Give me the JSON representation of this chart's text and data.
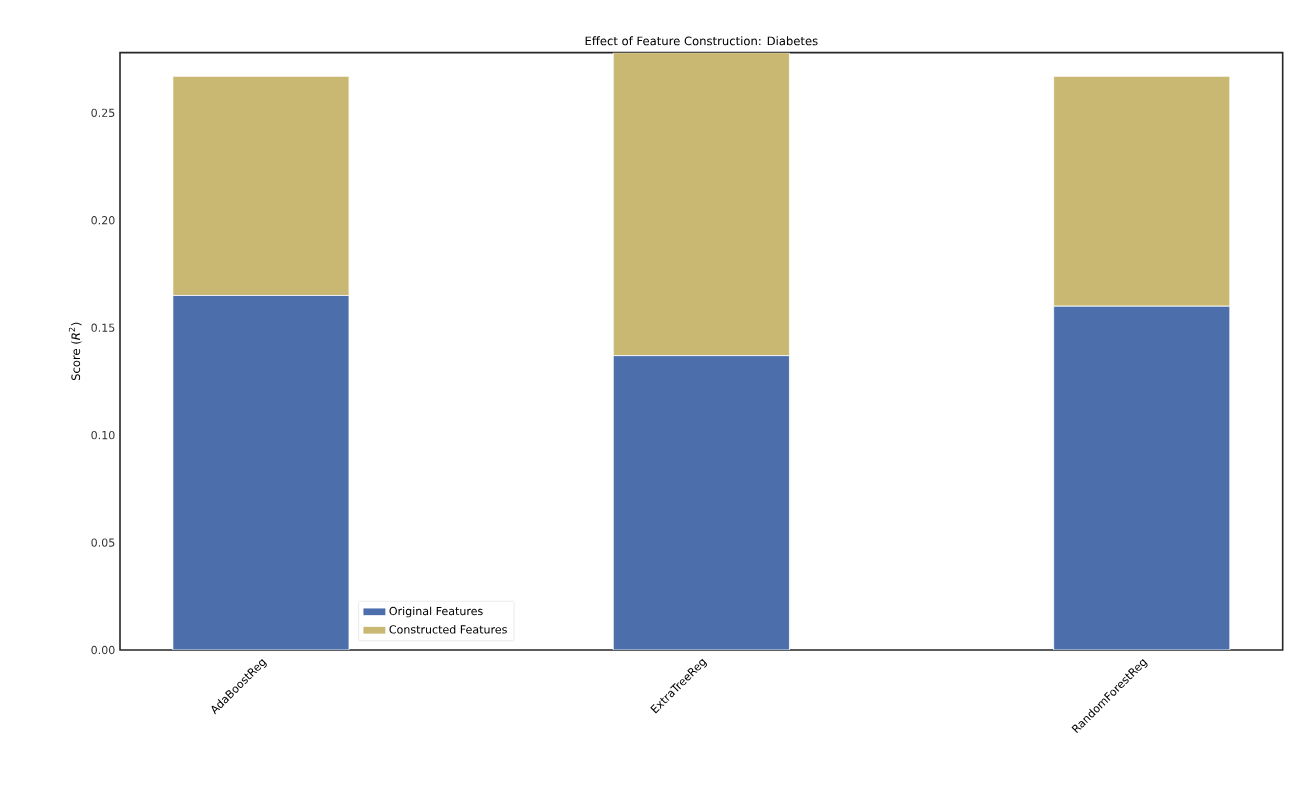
{
  "chart_data": {
    "type": "bar",
    "title": "Effect of Feature Construction: Diabetes",
    "ylabel": "Score (*R*$^{2}$)",
    "categories": [
      "AdaBoostReg",
      "ExtraTreeReg",
      "RandomForestReg"
    ],
    "stacked": true,
    "series": [
      {
        "name": "Original Features",
        "color": "#4c6fac",
        "values": [
          0.165,
          0.137,
          0.16
        ]
      },
      {
        "name": "Constructed Features",
        "color": "#c8b871",
        "values": [
          0.102,
          0.141,
          0.107
        ]
      }
    ],
    "ylim": [
      0,
      0.278
    ],
    "yticks": [
      {
        "value": 0,
        "label": "0.00"
      },
      {
        "value": 0.05,
        "label": "0.05"
      },
      {
        "value": 0.1,
        "label": "0.10"
      },
      {
        "value": 0.15,
        "label": "0.15"
      },
      {
        "value": 0.2,
        "label": "0.20"
      },
      {
        "value": 0.25,
        "label": "0.25"
      }
    ],
    "legend": "bottom left",
    "grid": false
  }
}
